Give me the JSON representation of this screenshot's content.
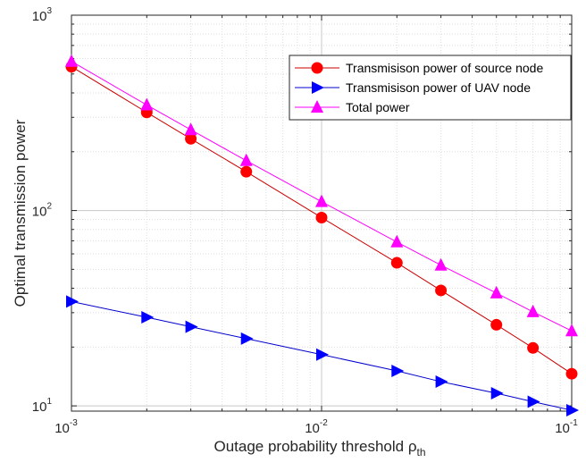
{
  "chart_data": {
    "type": "line",
    "xscale": "log",
    "yscale": "log",
    "xlim": [
      0.001,
      0.1
    ],
    "ylim": [
      9.4,
      1000
    ],
    "grid": true,
    "legend_position": "top-right",
    "xlabel": "Outage probability threshold ρ",
    "xlabel_subscript": "th",
    "ylabel": "Optimal transmission power",
    "x_tick_labels": [
      {
        "value": 0.001,
        "base": "10",
        "exp": "-3"
      },
      {
        "value": 0.01,
        "base": "10",
        "exp": "-2"
      },
      {
        "value": 0.1,
        "base": "10",
        "exp": "-1"
      }
    ],
    "y_tick_labels": [
      {
        "value": 10,
        "base": "10",
        "exp": "1"
      },
      {
        "value": 100,
        "base": "10",
        "exp": "2"
      },
      {
        "value": 1000,
        "base": "10",
        "exp": "3"
      }
    ],
    "x": [
      0.001,
      0.002,
      0.003,
      0.005,
      0.01,
      0.02,
      0.03,
      0.05,
      0.07,
      0.1
    ],
    "series": [
      {
        "name": "Transmisison power of source node",
        "color": "#ff0000",
        "line_color": "#cc0000",
        "marker": "circle",
        "values": [
          545,
          318,
          233,
          158,
          92,
          54,
          39,
          26,
          19.8,
          14.6
        ]
      },
      {
        "name": "Transmisison power of UAV node",
        "color": "#0000ff",
        "line_color": "#0000cc",
        "marker": "triangle-right",
        "values": [
          34.2,
          28.4,
          25.4,
          22.1,
          18.3,
          15.1,
          13.3,
          11.6,
          10.5,
          9.5
        ]
      },
      {
        "name": "Total power",
        "color": "#ff00ff",
        "line_color": "#ff00ff",
        "marker": "triangle-up",
        "values": [
          580,
          347,
          259,
          180,
          111,
          69,
          52.5,
          37.8,
          30.3,
          24.2
        ]
      }
    ]
  }
}
